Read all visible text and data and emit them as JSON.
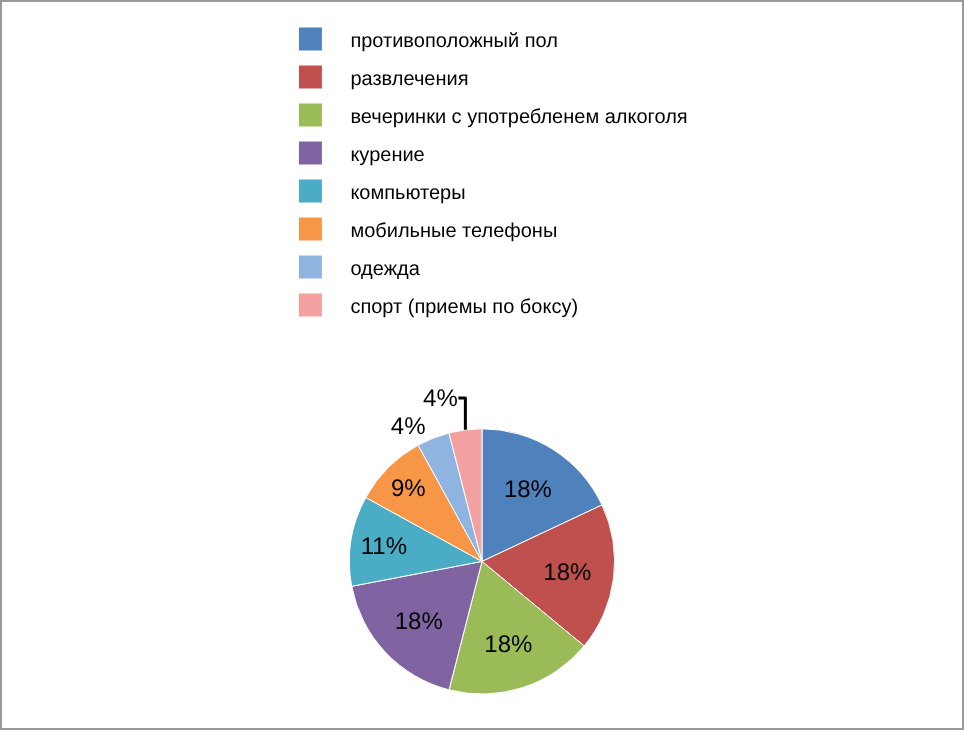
{
  "chart_data": {
    "type": "pie",
    "categories": [
      "противоположный пол",
      "развлечения",
      "вечеринки с употребленем алкоголя",
      "курение",
      "компьютеры",
      "мобильные телефоны",
      "одежда",
      "спорт (приемы по боксу)"
    ],
    "values": [
      18,
      18,
      18,
      18,
      11,
      9,
      4,
      4
    ],
    "value_labels": [
      "18%",
      "18%",
      "18%",
      "18%",
      "11%",
      "9%",
      "4%",
      "4%"
    ],
    "colors": [
      "#4f81bd",
      "#c0504d",
      "#9bbb59",
      "#8064a2",
      "#4bacc6",
      "#f79646",
      "#8fb4e0",
      "#f2a0a0"
    ],
    "legend": "top"
  }
}
